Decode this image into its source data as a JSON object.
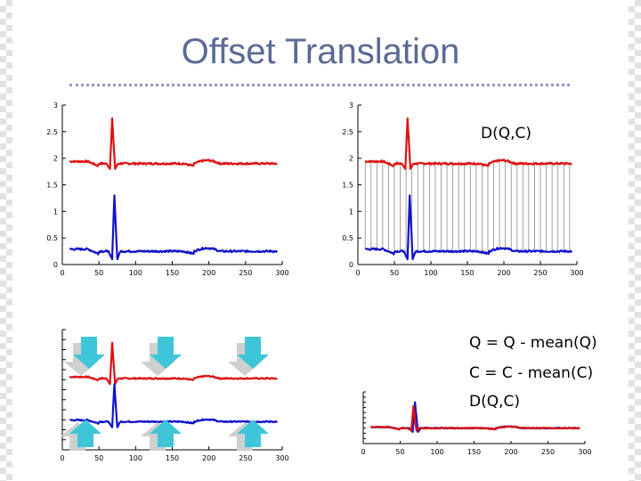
{
  "title": "Offset Translation",
  "equations": {
    "d_top": "D(Q,C)",
    "q_line": "Q = Q - mean(Q)",
    "c_line": "C = C - mean(C)",
    "d_line": "D(Q,C)"
  },
  "colors": {
    "q": "#dd1111",
    "c": "#1111cc",
    "arrow": "#3ec6d8",
    "arrow_shadow": "#cfcfcf",
    "title": "#5b6a95",
    "link": "#888888"
  },
  "icons": [
    "down-arrow-icon",
    "up-arrow-icon"
  ],
  "chart_data": [
    {
      "id": "top-left",
      "type": "line",
      "x": [
        0,
        300
      ],
      "xlim": [
        0,
        300
      ],
      "ylim": [
        0,
        3
      ],
      "x_ticks": [
        "0",
        "50",
        "100",
        "150",
        "200",
        "250",
        "300"
      ],
      "y_ticks": [
        "0",
        "0.5",
        "1",
        "1.5",
        "2",
        "2.5",
        "3"
      ],
      "series": [
        {
          "key": "q",
          "baseline": 1.9,
          "spike_peak": 2.75,
          "spike_dip": 1.8,
          "spike_x": 68,
          "bump_x": [
            180,
            215
          ],
          "end_x": 293
        },
        {
          "key": "c",
          "baseline": 0.25,
          "spike_peak": 1.3,
          "spike_dip": 0.1,
          "spike_x": 71,
          "bump_x": [
            180,
            215
          ],
          "end_x": 293
        }
      ]
    },
    {
      "id": "top-right",
      "type": "line",
      "xlim": [
        0,
        300
      ],
      "ylim": [
        0,
        3
      ],
      "x_ticks": [
        "0",
        "50",
        "100",
        "150",
        "200",
        "250",
        "300"
      ],
      "y_ticks": [
        "0",
        "0.5",
        "1",
        "1.5",
        "2",
        "2.5",
        "3"
      ],
      "series": [
        {
          "key": "q",
          "baseline": 1.9,
          "spike_peak": 2.75,
          "spike_dip": 1.8,
          "spike_x": 68,
          "bump_x": [
            180,
            215
          ],
          "end_x": 293
        },
        {
          "key": "c",
          "baseline": 0.25,
          "spike_peak": 1.3,
          "spike_dip": 0.1,
          "spike_x": 71,
          "bump_x": [
            180,
            215
          ],
          "end_x": 293
        }
      ],
      "links": true
    },
    {
      "id": "bottom-left",
      "type": "line",
      "xlim": [
        0,
        300
      ],
      "x_ticks": [
        "0",
        "50",
        "100",
        "150",
        "200",
        "250",
        "300"
      ],
      "series": [
        {
          "key": "q",
          "baseline": 0.7,
          "spike_peak": 1.65,
          "spike_dip": 0.55,
          "spike_x": 68,
          "bump_x": [
            180,
            215
          ],
          "end_x": 293
        },
        {
          "key": "c",
          "baseline": -0.45,
          "spike_peak": 0.55,
          "spike_dip": -0.6,
          "spike_x": 71,
          "bump_x": [
            180,
            215
          ],
          "end_x": 293
        }
      ]
    },
    {
      "id": "bottom-right",
      "type": "line",
      "xlim": [
        0,
        300
      ],
      "x_ticks": [
        "0",
        "50",
        "100",
        "150",
        "200",
        "250",
        "300"
      ],
      "series": [
        {
          "key": "c",
          "baseline": 0.0,
          "spike_peak": 1.0,
          "spike_dip": -0.15,
          "spike_x": 70,
          "bump_x": [
            180,
            215
          ],
          "end_x": 293
        },
        {
          "key": "q",
          "baseline": 0.0,
          "spike_peak": 0.85,
          "spike_dip": -0.1,
          "spike_x": 68,
          "bump_x": [
            180,
            215
          ],
          "end_x": 293
        }
      ]
    }
  ]
}
